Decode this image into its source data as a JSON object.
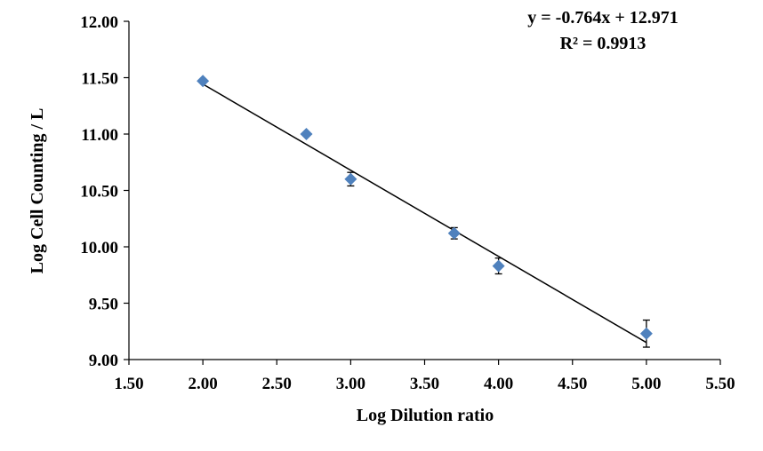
{
  "chart_data": {
    "type": "scatter",
    "title": "",
    "xlabel": "Log Dilution ratio",
    "ylabel": "Log Cell Counting / L",
    "xlim": [
      1.5,
      5.5
    ],
    "ylim": [
      9.0,
      12.0
    ],
    "x_ticks": [
      "1.50",
      "2.00",
      "2.50",
      "3.00",
      "3.50",
      "4.00",
      "4.50",
      "5.00",
      "5.50"
    ],
    "y_ticks": [
      "9.00",
      "9.50",
      "10.00",
      "10.50",
      "11.00",
      "11.50",
      "12.00"
    ],
    "grid": false,
    "legend": "none",
    "marker_color": "#4F81BD",
    "series": [
      {
        "x": [
          2.0,
          2.7,
          3.0,
          3.7,
          4.0,
          5.0
        ],
        "y": [
          11.47,
          11.0,
          10.6,
          10.12,
          9.83,
          9.23
        ],
        "error": [
          0.0,
          0.0,
          0.06,
          0.05,
          0.07,
          0.12
        ]
      }
    ],
    "trendline": {
      "slope": -0.764,
      "intercept": 12.971,
      "x_range": [
        2.0,
        5.0
      ]
    },
    "annotations": {
      "equation": "y = -0.764x + 12.971",
      "r_squared": "R² = 0.9913"
    }
  }
}
